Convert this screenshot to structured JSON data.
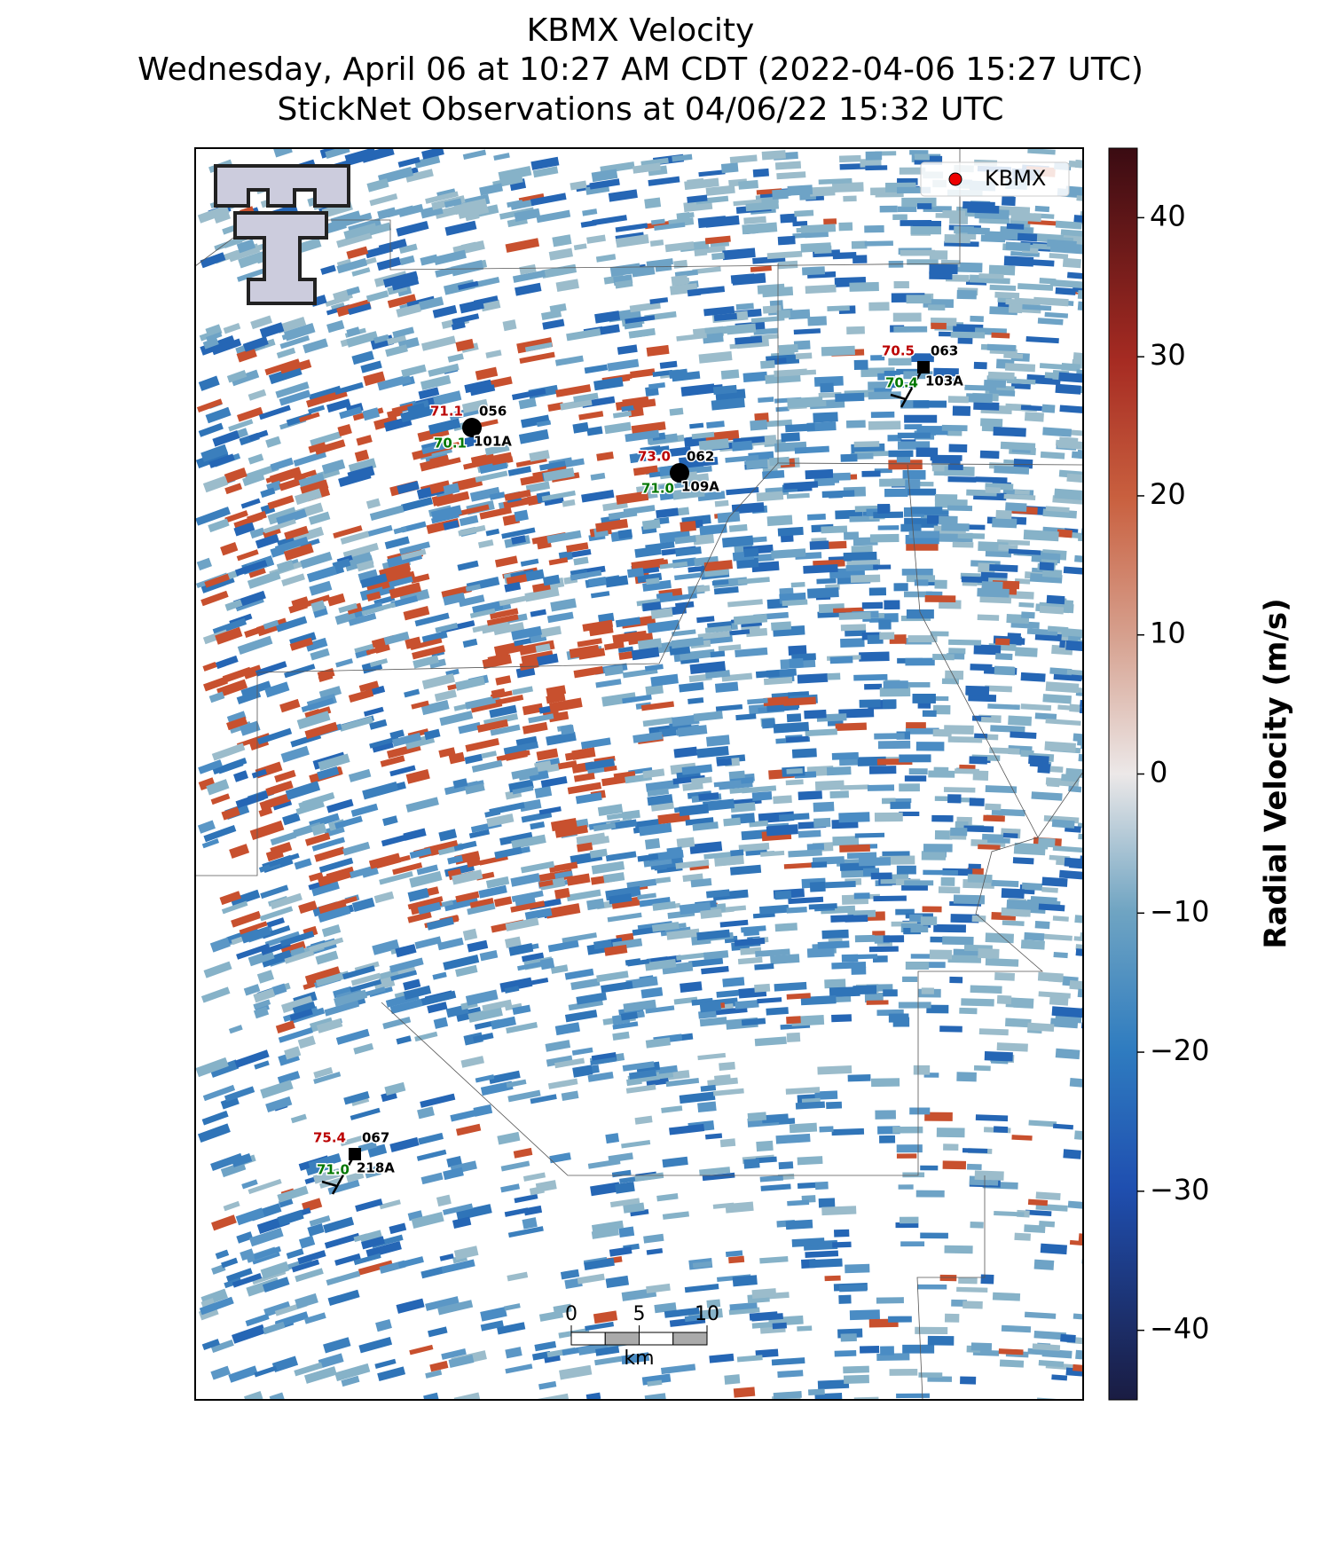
{
  "header": {
    "title": "KBMX Velocity",
    "subtitle": "Wednesday, April 06 at 10:27 AM CDT (2022-04-06 15:27 UTC)",
    "observations": "StickNet Observations at 04/06/22 15:32 UTC"
  },
  "legend": {
    "label": "KBMX"
  },
  "colorbar": {
    "label": "Radial Velocity (m/s)",
    "lim": [
      -45,
      45
    ],
    "ticks": [
      {
        "value": -40,
        "label": "−40"
      },
      {
        "value": -30,
        "label": "−30"
      },
      {
        "value": -20,
        "label": "−20"
      },
      {
        "value": -10,
        "label": "−10"
      },
      0,
      10,
      20,
      30,
      40
    ]
  },
  "stations": [
    {
      "temperature": "71.1",
      "dewpoint": "70.1",
      "code": "056",
      "id": "101A"
    },
    {
      "temperature": "73.0",
      "dewpoint": "71.0",
      "code": "062",
      "id": "109A"
    },
    {
      "temperature": "70.5",
      "dewpoint": "70.4",
      "code": "063",
      "id": "103A"
    },
    {
      "temperature": "75.4",
      "dewpoint": "71.0",
      "code": "067",
      "id": "218A"
    }
  ],
  "scale_bar": {
    "ticks": [
      0,
      5,
      10
    ],
    "unit": "km"
  }
}
